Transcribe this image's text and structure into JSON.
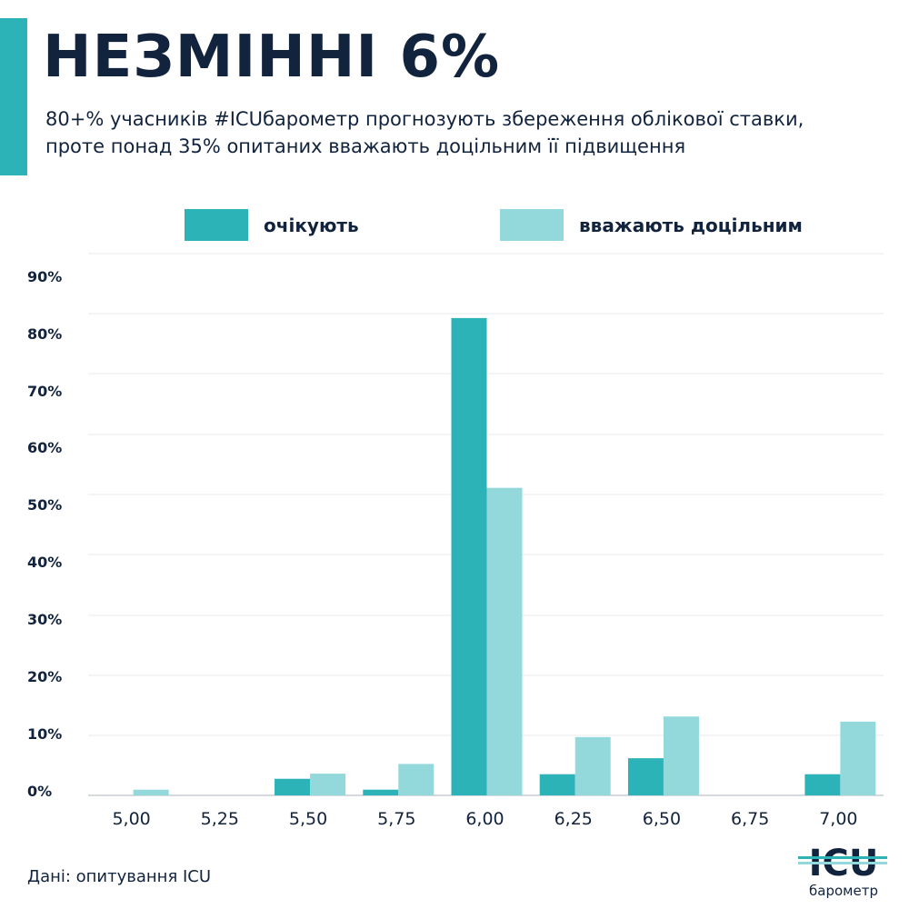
{
  "header": {
    "title": "НЕЗМІННІ 6%",
    "subtitle_line1": "80+% учасників #ICUбарометр прогнозують збереження облікової ставки,",
    "subtitle_line2": "проте понад 35% опитаних вважають доцільним її підвищення"
  },
  "colors": {
    "expect": "#2bb3b8",
    "appropriate": "#93d9dc",
    "text": "#12233d",
    "accent": "#2bb3b8"
  },
  "footer": {
    "source": "Дані: опитування ICU"
  },
  "logo": {
    "text": "ICU",
    "subtext": "барометр"
  },
  "chart_data": {
    "type": "bar",
    "title": "НЕЗМІННІ 6%",
    "xlabel": "",
    "ylabel": "",
    "legend_position": "top",
    "grid": true,
    "categories": [
      "5,00",
      "5,25",
      "5,50",
      "5,75",
      "6,00",
      "6,25",
      "6,50",
      "6,75",
      "7,00"
    ],
    "series": [
      {
        "name": "очікують",
        "values": [
          0,
          0,
          2.9,
          1.0,
          83.5,
          3.7,
          6.5,
          0,
          3.7
        ]
      },
      {
        "name": "вважають доцільним",
        "values": [
          1.0,
          0,
          3.8,
          5.5,
          53.8,
          10.2,
          13.8,
          0,
          12.9
        ]
      }
    ],
    "y_ticks": [
      "0%",
      "10%",
      "20%",
      "30%",
      "40%",
      "50%",
      "60%",
      "70%",
      "80%",
      "90%"
    ],
    "ylim": [
      0,
      90
    ]
  }
}
